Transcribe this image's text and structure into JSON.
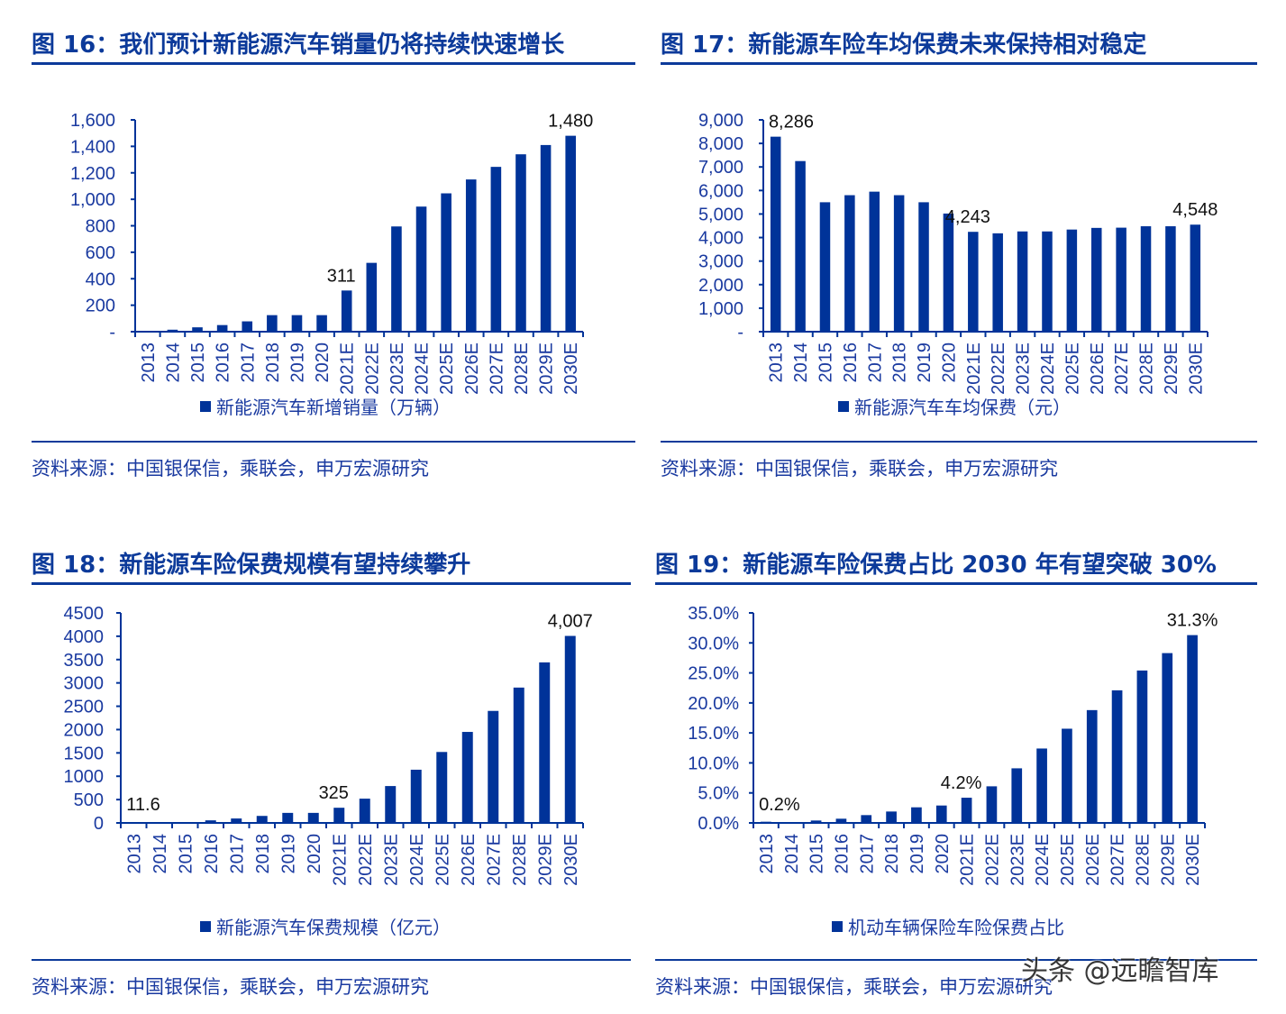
{
  "page": {
    "watermark": "头条 @远瞻智库"
  },
  "panels": [
    {
      "id": "fig16",
      "title": "图 16：我们预计新能源汽车销量仍将持续快速增长",
      "legend": "新能源汽车新增销量（万辆）",
      "source": "资料来源：中国银保信，乘联会，申万宏源研究"
    },
    {
      "id": "fig17",
      "title": "图 17：新能源车险车均保费未来保持相对稳定",
      "legend": "新能源汽车车均保费（元）",
      "source": "资料来源：中国银保信，乘联会，申万宏源研究"
    },
    {
      "id": "fig18",
      "title": "图 18：新能源车险保费规模有望持续攀升",
      "legend": "新能源汽车保费规模（亿元）",
      "source": "资料来源：中国银保信，乘联会，申万宏源研究"
    },
    {
      "id": "fig19",
      "title": "图 19：新能源车险保费占比 2030 年有望突破 30%",
      "legend": "机动车辆保险车险保费占比",
      "source": "资料来源：中国银保信，乘联会，申万宏源研究"
    }
  ],
  "colors": {
    "bar": "#003399",
    "axis_text": "#1a3aa0",
    "title": "#0c3a9a",
    "data_label": "#111111"
  },
  "chart_data": [
    {
      "type": "bar",
      "title": "图 16：我们预计新能源汽车销量仍将持续快速增长",
      "xlabel": "",
      "ylabel": "",
      "legend": [
        "新能源汽车新增销量（万辆）"
      ],
      "legend_position": "bottom",
      "grid": false,
      "ylim": [
        0,
        1600
      ],
      "yticks": [
        0,
        200,
        400,
        600,
        800,
        1000,
        1200,
        1400,
        1600
      ],
      "ytick_labels": [
        "-",
        "200",
        "400",
        "600",
        "800",
        "1,000",
        "1,200",
        "1,400",
        "1,600"
      ],
      "categories": [
        "2013",
        "2014",
        "2015",
        "2016",
        "2017",
        "2018",
        "2019",
        "2020",
        "2021E",
        "2022E",
        "2023E",
        "2024E",
        "2025E",
        "2026E",
        "2027E",
        "2028E",
        "2029E",
        "2030E"
      ],
      "series": [
        {
          "name": "新能源汽车新增销量（万辆）",
          "values": [
            0,
            15,
            33,
            50,
            78,
            125,
            125,
            125,
            311,
            520,
            795,
            945,
            1045,
            1150,
            1245,
            1340,
            1410,
            1480
          ]
        }
      ],
      "annotations": [
        {
          "index": 8,
          "text": "311"
        },
        {
          "index": 17,
          "text": "1,480"
        }
      ]
    },
    {
      "type": "bar",
      "title": "图 17：新能源车险车均保费未来保持相对稳定",
      "xlabel": "",
      "ylabel": "",
      "legend": [
        "新能源汽车车均保费（元）"
      ],
      "legend_position": "bottom",
      "grid": false,
      "ylim": [
        0,
        9000
      ],
      "yticks": [
        0,
        1000,
        2000,
        3000,
        4000,
        5000,
        6000,
        7000,
        8000,
        9000
      ],
      "ytick_labels": [
        "-",
        "1,000",
        "2,000",
        "3,000",
        "4,000",
        "5,000",
        "6,000",
        "7,000",
        "8,000",
        "9,000"
      ],
      "categories": [
        "2013",
        "2014",
        "2015",
        "2016",
        "2017",
        "2018",
        "2019",
        "2020",
        "2021E",
        "2022E",
        "2023E",
        "2024E",
        "2025E",
        "2026E",
        "2027E",
        "2028E",
        "2029E",
        "2030E"
      ],
      "series": [
        {
          "name": "新能源汽车车均保费（元）",
          "values": [
            8286,
            7250,
            5500,
            5800,
            5950,
            5800,
            5500,
            5020,
            4243,
            4180,
            4260,
            4260,
            4340,
            4410,
            4420,
            4480,
            4480,
            4548
          ]
        }
      ],
      "annotations": [
        {
          "index": 0,
          "text": "8,286"
        },
        {
          "index": 8,
          "text": "4,243"
        },
        {
          "index": 17,
          "text": "4,548"
        }
      ]
    },
    {
      "type": "bar",
      "title": "图 18：新能源车险保费规模有望持续攀升",
      "xlabel": "",
      "ylabel": "",
      "legend": [
        "新能源汽车保费规模（亿元）"
      ],
      "legend_position": "bottom",
      "grid": false,
      "ylim": [
        0,
        4500
      ],
      "yticks": [
        0,
        500,
        1000,
        1500,
        2000,
        2500,
        3000,
        3500,
        4000,
        4500
      ],
      "ytick_labels": [
        "0",
        "500",
        "1000",
        "1500",
        "2000",
        "2500",
        "3000",
        "3500",
        "4000",
        "4500"
      ],
      "categories": [
        "2013",
        "2014",
        "2015",
        "2016",
        "2017",
        "2018",
        "2019",
        "2020",
        "2021E",
        "2022E",
        "2023E",
        "2024E",
        "2025E",
        "2026E",
        "2027E",
        "2028E",
        "2029E",
        "2030E"
      ],
      "series": [
        {
          "name": "新能源汽车保费规模（亿元）",
          "values": [
            11.6,
            12,
            18,
            55,
            95,
            150,
            215,
            215,
            325,
            520,
            790,
            1140,
            1520,
            1950,
            2400,
            2900,
            3440,
            4007
          ]
        }
      ],
      "annotations": [
        {
          "index": 0,
          "text": "11.6"
        },
        {
          "index": 8,
          "text": "325"
        },
        {
          "index": 17,
          "text": "4,007"
        }
      ]
    },
    {
      "type": "bar",
      "title": "图 19：新能源车险保费占比 2030 年有望突破 30%",
      "xlabel": "",
      "ylabel": "",
      "legend": [
        "机动车辆保险车险保费占比"
      ],
      "legend_position": "bottom",
      "grid": false,
      "ylim": [
        0,
        35
      ],
      "yticks": [
        0,
        5,
        10,
        15,
        20,
        25,
        30,
        35
      ],
      "ytick_labels": [
        "0.0%",
        "5.0%",
        "10.0%",
        "15.0%",
        "20.0%",
        "25.0%",
        "30.0%",
        "35.0%"
      ],
      "unit": "%",
      "categories": [
        "2013",
        "2014",
        "2015",
        "2016",
        "2017",
        "2018",
        "2019",
        "2020",
        "2021E",
        "2022E",
        "2023E",
        "2024E",
        "2025E",
        "2026E",
        "2027E",
        "2028E",
        "2029E",
        "2030E"
      ],
      "series": [
        {
          "name": "机动车辆保险车险保费占比",
          "values": [
            0.2,
            0.1,
            0.4,
            0.7,
            1.3,
            1.9,
            2.6,
            2.9,
            4.2,
            6.1,
            9.1,
            12.4,
            15.7,
            18.8,
            22.1,
            25.4,
            28.3,
            31.3
          ]
        }
      ],
      "annotations": [
        {
          "index": 0,
          "text": "0.2%"
        },
        {
          "index": 8,
          "text": "4.2%"
        },
        {
          "index": 17,
          "text": "31.3%"
        }
      ]
    }
  ]
}
